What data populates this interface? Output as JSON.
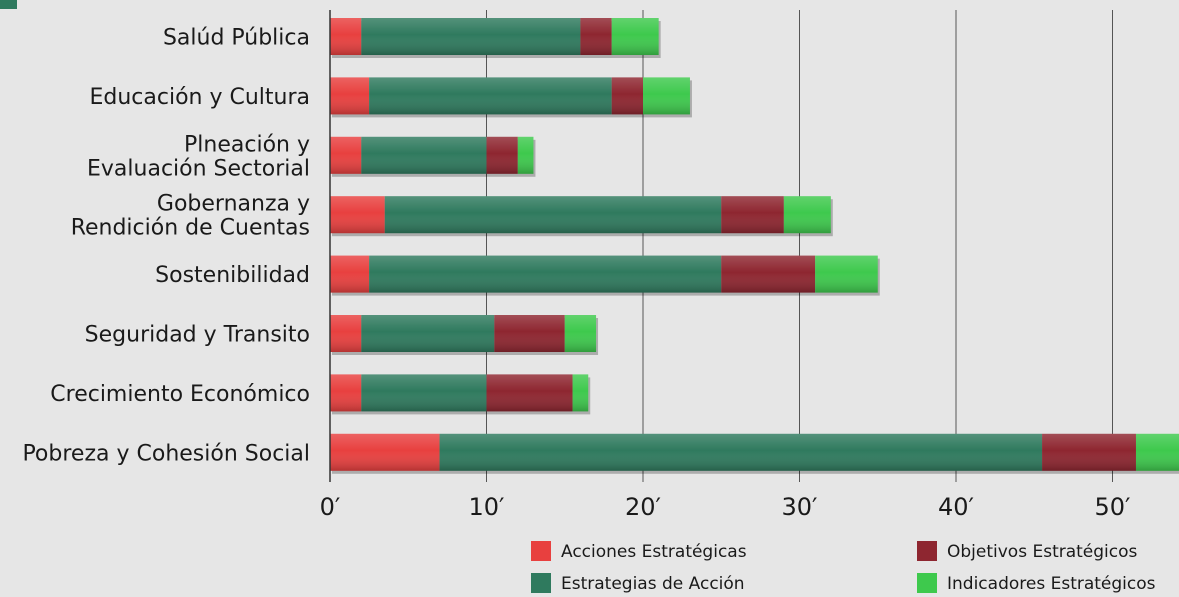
{
  "chart_data": {
    "type": "bar",
    "orientation": "horizontal",
    "stacked": true,
    "categories": [
      [
        "Salúd Pública"
      ],
      [
        "Educación y Cultura"
      ],
      [
        "Plneación y",
        "Evaluación Sectorial"
      ],
      [
        "Gobernanza y",
        "Rendición de Cuentas"
      ],
      [
        "Sostenibilidad"
      ],
      [
        "Seguridad y Transito"
      ],
      [
        "Crecimiento Económico"
      ],
      [
        "Pobreza y Cohesión Social"
      ]
    ],
    "series": [
      {
        "name": "Acciones Estratégicas",
        "color": "#e8403f",
        "values": [
          2,
          2.5,
          2,
          3.5,
          2.5,
          2,
          2,
          7
        ]
      },
      {
        "name": "Estrategias de Acción",
        "color": "#2f7a5e",
        "values": [
          14,
          15.5,
          8,
          21.5,
          22.5,
          8.5,
          8,
          38.5
        ]
      },
      {
        "name": "Objetivos Estratégicos",
        "color": "#8e2630",
        "values": [
          2,
          2,
          2,
          4,
          6,
          4.5,
          5.5,
          6
        ]
      },
      {
        "name": "Indicadores Estratégicos",
        "color": "#3ec94d",
        "values": [
          3,
          3,
          1,
          3,
          4,
          2,
          1,
          4
        ]
      }
    ],
    "x_ticks": [
      "0′",
      "10′",
      "20′",
      "30′",
      "40′",
      "50′"
    ],
    "x_tick_values": [
      0,
      10,
      20,
      30,
      40,
      50
    ],
    "xlim": [
      0,
      54
    ],
    "grid": true,
    "legend_position": "bottom-right"
  }
}
